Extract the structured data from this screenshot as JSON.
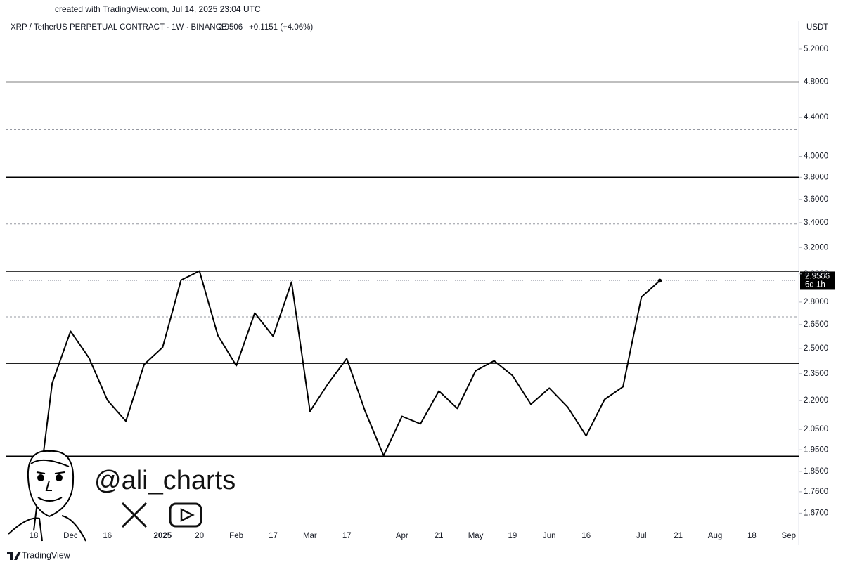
{
  "header": {
    "credit": "created with TradingView.com, Jul 14, 2025 23:04 UTC",
    "symbol": "XRP / TetherUS PERPETUAL CONTRACT · 1W · BINANCE",
    "change": "+0.1151 (+4.06%)",
    "currency": "USDT",
    "countdown": "6d 1h",
    "watermark": "@ali_charts",
    "footer": "TradingView"
  },
  "chart_data": {
    "type": "line",
    "log_scale": true,
    "categories": [
      "18",
      null,
      "Dec",
      null,
      "16",
      null,
      null,
      "2025",
      null,
      "20",
      null,
      "Feb",
      null,
      "17",
      null,
      "Mar",
      null,
      "17",
      null,
      null,
      "Apr",
      null,
      "21",
      null,
      "May",
      null,
      "19",
      null,
      "Jun",
      null,
      "16",
      null,
      null,
      "Jul",
      null,
      "21",
      null,
      "Aug",
      null,
      "18",
      null,
      "Sep"
    ],
    "series": [
      {
        "name": "XRPUSDT.P",
        "color": "#000000",
        "values": [
          1.6,
          2.295,
          2.607,
          2.442,
          2.202,
          2.092,
          2.404,
          2.506,
          2.955,
          3.021,
          2.58,
          2.396,
          2.726,
          2.575,
          2.94,
          2.143,
          2.295,
          2.438,
          2.143,
          1.923,
          2.117,
          2.078,
          2.252,
          2.158,
          2.367,
          2.425,
          2.339,
          2.18,
          2.268,
          2.165,
          2.018,
          2.206,
          2.276,
          2.835,
          2.9506,
          null,
          null,
          null,
          null,
          null,
          null,
          null
        ]
      }
    ],
    "levels": [
      {
        "value": 4.8,
        "style": "solid"
      },
      {
        "value": 4.27,
        "style": "dashed"
      },
      {
        "value": 3.8,
        "style": "solid"
      },
      {
        "value": 3.39,
        "style": "dashed"
      },
      {
        "value": 3.02,
        "style": "solid"
      },
      {
        "value": 2.7,
        "style": "dashed"
      },
      {
        "value": 2.41,
        "style": "solid"
      },
      {
        "value": 2.15,
        "style": "dashed"
      },
      {
        "value": 1.92,
        "style": "solid"
      }
    ],
    "ylim": [
      1.56,
      5.57
    ],
    "yticks": [
      {
        "value": 5.2,
        "label": "5.2000"
      },
      {
        "value": 4.8,
        "label": "4.8000"
      },
      {
        "value": 4.4,
        "label": "4.4000"
      },
      {
        "value": 4.0,
        "label": "4.0000"
      },
      {
        "value": 3.8,
        "label": "3.8000"
      },
      {
        "value": 3.6,
        "label": "3.6000"
      },
      {
        "value": 3.4,
        "label": "3.4000"
      },
      {
        "value": 3.2,
        "label": "3.2000"
      },
      {
        "value": 3.0,
        "label": "3.0000"
      },
      {
        "value": 2.8,
        "label": "2.8000"
      },
      {
        "value": 2.65,
        "label": "2.6500"
      },
      {
        "value": 2.5,
        "label": "2.5000"
      },
      {
        "value": 2.35,
        "label": "2.3500"
      },
      {
        "value": 2.2,
        "label": "2.2000"
      },
      {
        "value": 2.05,
        "label": "2.0500"
      },
      {
        "value": 1.95,
        "label": "1.9500"
      },
      {
        "value": 1.85,
        "label": "1.8500"
      },
      {
        "value": 1.76,
        "label": "1.7600"
      },
      {
        "value": 1.67,
        "label": "1.6700"
      }
    ]
  }
}
